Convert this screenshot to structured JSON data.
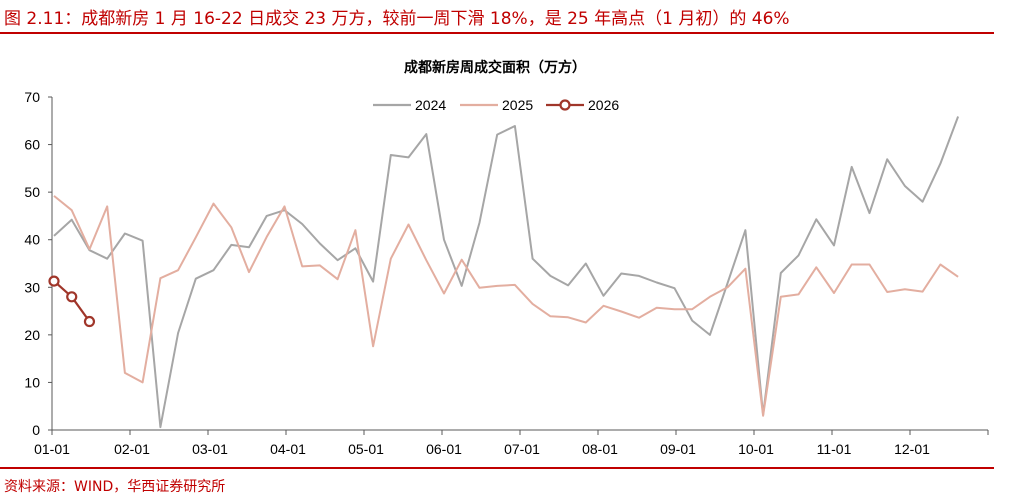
{
  "figure": {
    "title": "图 2.11：成都新房 1 月 16-22 日成交 23 万方，较前一周下滑 18%，是 25 年高点（1 月初）的 46%",
    "source": "资料来源：WIND，华西证券研究所",
    "accent_color": "#c00000"
  },
  "chart_data": {
    "type": "line",
    "title": "成都新房周成交面积（万方）",
    "xlabel": "",
    "ylabel": "",
    "ylim": [
      0,
      70
    ],
    "yticks": [
      0,
      10,
      20,
      30,
      40,
      50,
      60,
      70
    ],
    "xticks": [
      "01-01",
      "02-01",
      "03-01",
      "04-01",
      "05-01",
      "06-01",
      "07-01",
      "08-01",
      "09-01",
      "10-01",
      "11-01",
      "12-01"
    ],
    "grid": false,
    "legend_position": "top-center",
    "series": [
      {
        "name": "2024",
        "color": "#a6a6a6",
        "marker": "none",
        "values": [
          40.8,
          44.2,
          37.8,
          36.0,
          41.3,
          39.8,
          0.6,
          20.4,
          31.8,
          33.6,
          38.9,
          38.4,
          45.0,
          46.2,
          43.3,
          39.2,
          35.7,
          38.2,
          31.2,
          57.8,
          57.3,
          62.2,
          40.0,
          30.3,
          43.6,
          62.1,
          63.9,
          36.0,
          32.4,
          30.4,
          35.0,
          28.2,
          32.9,
          32.4,
          31.0,
          29.8,
          23.0,
          20.0,
          30.9,
          42.0,
          3.2,
          33.0,
          36.7,
          44.3,
          38.8,
          55.3,
          45.6,
          56.9,
          51.3,
          48.0,
          56.0,
          65.9
        ]
      },
      {
        "name": "2025",
        "color": "#e3aea0",
        "marker": "none",
        "values": [
          49.2,
          46.2,
          38.0,
          47.0,
          12.0,
          10.0,
          31.9,
          33.6,
          40.5,
          47.6,
          42.6,
          33.2,
          40.6,
          47.0,
          34.4,
          34.6,
          31.7,
          42.0,
          17.6,
          36.0,
          43.2,
          35.7,
          28.7,
          35.8,
          29.9,
          30.3,
          30.5,
          26.5,
          23.9,
          23.7,
          22.6,
          26.1,
          24.9,
          23.6,
          25.7,
          25.4,
          25.4,
          28.0,
          30.0,
          33.9,
          3.0,
          28.0,
          28.5,
          34.2,
          28.8,
          34.8,
          34.8,
          29.0,
          29.6,
          29.1,
          34.8,
          32.2
        ]
      },
      {
        "name": "2026",
        "color": "#a0362a",
        "marker": "circle",
        "values": [
          31.3,
          28.0,
          22.8
        ]
      }
    ]
  }
}
